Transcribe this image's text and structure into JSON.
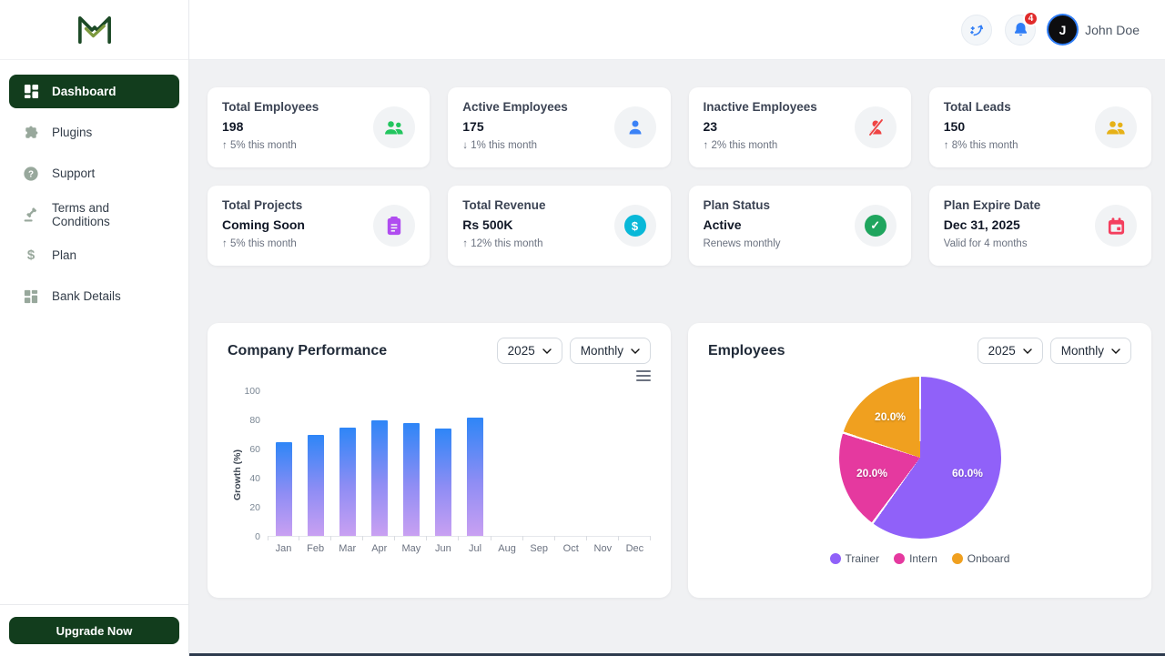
{
  "sidebar": {
    "items": [
      {
        "label": "Dashboard",
        "active": true
      },
      {
        "label": "Plugins",
        "active": false
      },
      {
        "label": "Support",
        "active": false
      },
      {
        "label": "Terms and Conditions",
        "active": false
      },
      {
        "label": "Plan",
        "active": false
      },
      {
        "label": "Bank Details",
        "active": false
      }
    ],
    "upgrade_label": "Upgrade Now"
  },
  "header": {
    "notification_count": "4",
    "avatar_initial": "J",
    "user_name": "John Doe"
  },
  "stats": {
    "cards": [
      {
        "title": "Total Employees",
        "value": "198",
        "delta": "↑ 5% this month",
        "icon": "users",
        "color": "#22c55e"
      },
      {
        "title": "Active Employees",
        "value": "175",
        "delta": "↓ 1% this month",
        "icon": "user",
        "color": "#3b82f6"
      },
      {
        "title": "Inactive Employees",
        "value": "23",
        "delta": "↑ 2% this month",
        "icon": "user-slash",
        "color": "#ef4444"
      },
      {
        "title": "Total Leads",
        "value": "150",
        "delta": "↑ 8% this month",
        "icon": "users",
        "color": "#e6b117"
      },
      {
        "title": "Total Projects",
        "value": "Coming Soon",
        "delta": "↑ 5% this month",
        "icon": "clipboard",
        "color": "#b04cf0"
      },
      {
        "title": "Total Revenue",
        "value": "Rs 500K",
        "delta": "↑ 12% this month",
        "icon": "dollar",
        "color": "#09b8d8"
      },
      {
        "title": "Plan Status",
        "value": "Active",
        "delta": "Renews monthly",
        "icon": "badge-check",
        "color": "#1fa55e"
      },
      {
        "title": "Plan Expire Date",
        "value": "Dec 31, 2025",
        "delta": "Valid for 4 months",
        "icon": "calendar",
        "color": "#f43f5e"
      }
    ]
  },
  "performance": {
    "title": "Company Performance",
    "year": "2025",
    "period": "Monthly"
  },
  "employees": {
    "title": "Employees",
    "year": "2025",
    "period": "Monthly"
  },
  "chart_data": [
    {
      "type": "bar",
      "title": "Company Performance",
      "categories": [
        "Jan",
        "Feb",
        "Mar",
        "Apr",
        "May",
        "Jun",
        "Jul",
        "Aug",
        "Sep",
        "Oct",
        "Nov",
        "Dec"
      ],
      "values": [
        65,
        70,
        75,
        80,
        78,
        74,
        82,
        0,
        0,
        0,
        0,
        0
      ],
      "xlabel": "",
      "ylabel": "Growth (%)",
      "ylim": [
        0,
        100
      ],
      "yticks": [
        0,
        20,
        40,
        60,
        80,
        100
      ],
      "grid": false,
      "bar_gradient": [
        "#2e86f7",
        "#c9a0f2"
      ]
    },
    {
      "type": "pie",
      "title": "Employees",
      "labels": [
        "Trainer",
        "Intern",
        "Onboard"
      ],
      "values": [
        60.0,
        20.0,
        20.0
      ],
      "slice_labels": [
        "60.0%",
        "20.0%",
        "20.0%"
      ],
      "colors": [
        "#9061f9",
        "#e5399f",
        "#f0a01f"
      ],
      "legend_position": "bottom"
    }
  ]
}
